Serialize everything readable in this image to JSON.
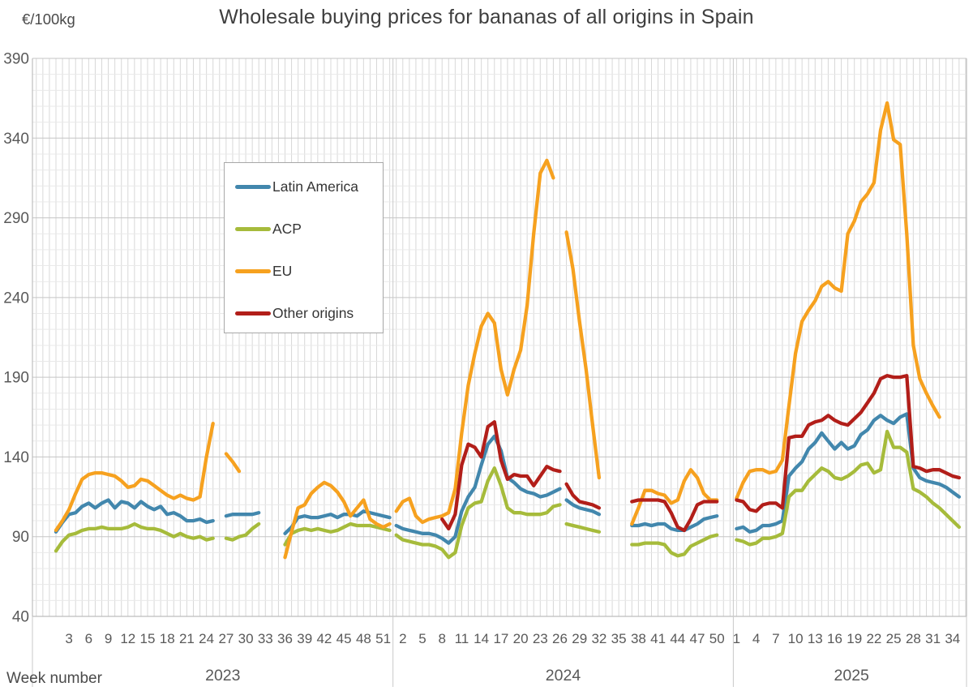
{
  "chart_data": {
    "type": "line",
    "title": "Wholesale buying prices for bananas of all origins in Spain",
    "y_unit": "€/100kg",
    "x_label": "Week number",
    "ylim": [
      40,
      390
    ],
    "y_ticks": [
      390,
      340,
      290,
      240,
      190,
      140,
      90,
      40
    ],
    "y_minor_step": 10,
    "grid": "on",
    "legend_position": "inside-left",
    "years": [
      {
        "label": "2023",
        "tick_weeks": [
          3,
          6,
          9,
          12,
          15,
          18,
          21,
          24,
          27,
          30,
          33,
          36,
          39,
          42,
          45,
          48,
          51
        ]
      },
      {
        "label": "2024",
        "tick_weeks": [
          2,
          5,
          8,
          11,
          14,
          17,
          20,
          23,
          26,
          29,
          32,
          35,
          38,
          41,
          44,
          47,
          50
        ]
      },
      {
        "label": "2025",
        "tick_weeks": [
          1,
          4,
          7,
          10,
          13,
          16,
          19,
          22,
          25,
          28,
          31,
          34
        ]
      }
    ],
    "series": [
      {
        "name": "Latin America",
        "color": "#4287AD",
        "segments": [
          {
            "year": 2023,
            "start_week": 1,
            "values": [
              93,
              99,
              104,
              105,
              109,
              111,
              108,
              111,
              113,
              108,
              112,
              111,
              108,
              112,
              109,
              107,
              109,
              104,
              105,
              103,
              100,
              100,
              101,
              99,
              100
            ]
          },
          {
            "year": 2023,
            "start_week": 27,
            "values": [
              103,
              104,
              104,
              104,
              104,
              105
            ]
          },
          {
            "year": 2023,
            "start_week": 36,
            "values": [
              92,
              96,
              102,
              103,
              102,
              102,
              103,
              104,
              102,
              104,
              104,
              103,
              106,
              105,
              104,
              103,
              102
            ]
          },
          {
            "year": 2024,
            "start_week": 1,
            "values": [
              97,
              95,
              94,
              93,
              92,
              92,
              91,
              89,
              86,
              90,
              106,
              115,
              121,
              135,
              148,
              153,
              144,
              127,
              124,
              120,
              118,
              117,
              115,
              116,
              118,
              120
            ]
          },
          {
            "year": 2024,
            "start_week": 27,
            "values": [
              113,
              110,
              108,
              107,
              106,
              104
            ]
          },
          {
            "year": 2024,
            "start_week": 37,
            "values": [
              97,
              97,
              98,
              97,
              98,
              98,
              95,
              94,
              94,
              96,
              98,
              101,
              102,
              103
            ]
          },
          {
            "year": 2025,
            "start_week": 1,
            "values": [
              95,
              96,
              93,
              94,
              97,
              97,
              98,
              100,
              128,
              133,
              137,
              145,
              149,
              155,
              150,
              145,
              149,
              145,
              147,
              154,
              157,
              163,
              166,
              163,
              161,
              165,
              167,
              133,
              127,
              125,
              124,
              123,
              121,
              118,
              115
            ]
          }
        ]
      },
      {
        "name": "ACP",
        "color": "#A6BB3B",
        "segments": [
          {
            "year": 2023,
            "start_week": 1,
            "values": [
              81,
              87,
              91,
              92,
              94,
              95,
              95,
              96,
              95,
              95,
              95,
              96,
              98,
              96,
              95,
              95,
              94,
              92,
              90,
              92,
              90,
              89,
              90,
              88,
              89
            ]
          },
          {
            "year": 2023,
            "start_week": 27,
            "values": [
              89,
              88,
              90,
              91,
              95,
              98
            ]
          },
          {
            "year": 2023,
            "start_week": 36,
            "values": [
              85,
              92,
              94,
              95,
              94,
              95,
              94,
              93,
              94,
              96,
              98,
              97,
              97,
              97,
              96,
              95,
              94
            ]
          },
          {
            "year": 2024,
            "start_week": 1,
            "values": [
              91,
              88,
              87,
              86,
              85,
              85,
              84,
              82,
              77,
              80,
              97,
              108,
              111,
              112,
              125,
              133,
              122,
              108,
              105,
              105,
              104,
              104,
              104,
              105,
              109,
              110
            ]
          },
          {
            "year": 2024,
            "start_week": 27,
            "values": [
              98,
              97,
              96,
              95,
              94,
              93
            ]
          },
          {
            "year": 2024,
            "start_week": 37,
            "values": [
              85,
              85,
              86,
              86,
              86,
              85,
              80,
              78,
              79,
              84,
              86,
              88,
              90,
              91
            ]
          },
          {
            "year": 2025,
            "start_week": 1,
            "values": [
              88,
              87,
              85,
              86,
              89,
              89,
              90,
              92,
              115,
              119,
              119,
              125,
              129,
              133,
              131,
              127,
              126,
              128,
              131,
              135,
              136,
              130,
              132,
              156,
              146,
              146,
              143,
              120,
              118,
              115,
              111,
              108,
              104,
              100,
              96
            ]
          }
        ]
      },
      {
        "name": "EU",
        "color": "#F6A11F",
        "segments": [
          {
            "year": 2023,
            "start_week": 1,
            "values": [
              94,
              100,
              107,
              117,
              126,
              129,
              130,
              130,
              129,
              128,
              125,
              121,
              122,
              126,
              125,
              122,
              119,
              116,
              114,
              116,
              114,
              113,
              115,
              140,
              161
            ]
          },
          {
            "year": 2023,
            "start_week": 27,
            "values": [
              142,
              137,
              131
            ]
          },
          {
            "year": 2023,
            "start_week": 36,
            "values": [
              77,
              93,
              108,
              110,
              117,
              121,
              124,
              122,
              118,
              112,
              103,
              108,
              113,
              101,
              98,
              96,
              98
            ]
          },
          {
            "year": 2024,
            "start_week": 1,
            "values": [
              106,
              112,
              114,
              103,
              99,
              101,
              102,
              103,
              105,
              120,
              155,
              185,
              205,
              222,
              230,
              224,
              195,
              179,
              195,
              207,
              235,
              280,
              318,
              326,
              315
            ]
          },
          {
            "year": 2024,
            "start_week": 27,
            "values": [
              281,
              258,
              225,
              195,
              160,
              127
            ]
          },
          {
            "year": 2024,
            "start_week": 37,
            "values": [
              98,
              108,
              119,
              119,
              117,
              116,
              111,
              113,
              125,
              132,
              127,
              117,
              113,
              113
            ]
          },
          {
            "year": 2025,
            "start_week": 1,
            "values": [
              114,
              124,
              131,
              132,
              132,
              130,
              131,
              138,
              172,
              205,
              225,
              232,
              238,
              247,
              250,
              246,
              244,
              280,
              288,
              300,
              305,
              312,
              345,
              362,
              339,
              336,
              280,
              210,
              189,
              180,
              172,
              165
            ]
          }
        ]
      },
      {
        "name": "Other origins",
        "color": "#B21E19",
        "segments": [
          {
            "year": 2024,
            "start_week": 8,
            "values": [
              101,
              95,
              104,
              135,
              148,
              146,
              140,
              159,
              162,
              138,
              126,
              129,
              128,
              128,
              122,
              128,
              134,
              132,
              131
            ]
          },
          {
            "year": 2024,
            "start_week": 27,
            "values": [
              123,
              116,
              112,
              111,
              110,
              108
            ]
          },
          {
            "year": 2024,
            "start_week": 37,
            "values": [
              112,
              113,
              113,
              113,
              113,
              112,
              105,
              96,
              94,
              101,
              110,
              112,
              112,
              112
            ]
          },
          {
            "year": 2025,
            "start_week": 1,
            "values": [
              113,
              112,
              107,
              106,
              110,
              111,
              111,
              108,
              152,
              153,
              153,
              160,
              162,
              163,
              166,
              163,
              161,
              160,
              164,
              168,
              174,
              180,
              189,
              191,
              190,
              190,
              191,
              134,
              133,
              131,
              132,
              132,
              130,
              128,
              127
            ]
          }
        ]
      }
    ]
  }
}
